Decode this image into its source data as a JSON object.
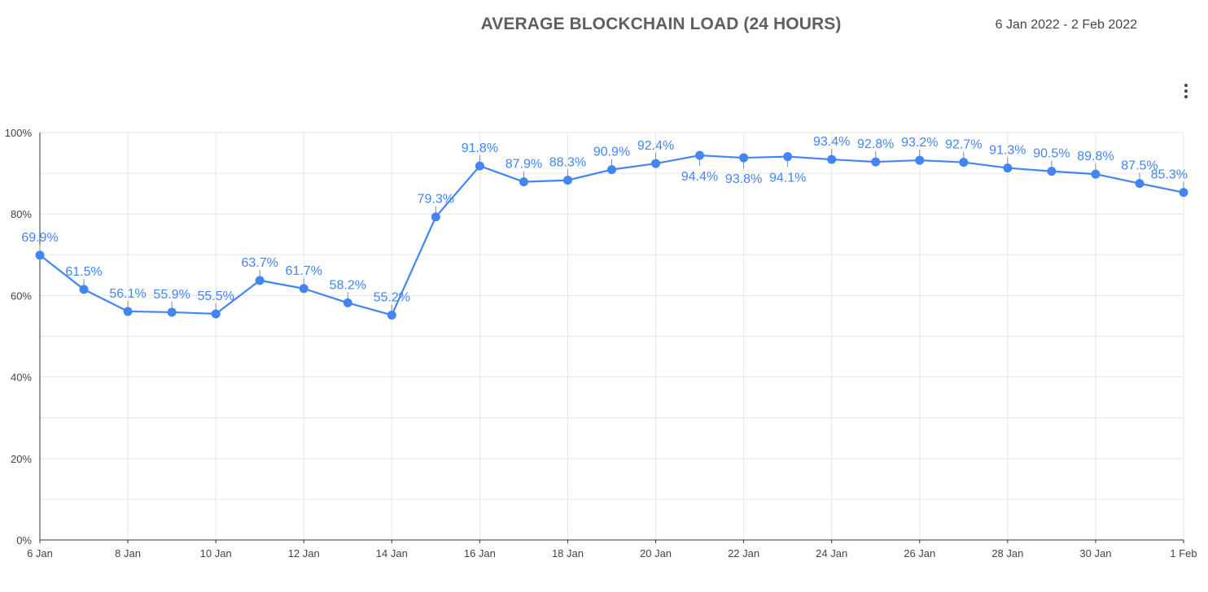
{
  "header": {
    "title": "AVERAGE BLOCKCHAIN LOAD (24 HOURS)",
    "date_range": "6 Jan 2022 - 2 Feb 2022"
  },
  "menu": {
    "icon": "more-vert-icon"
  },
  "colors": {
    "series": "#4285f4",
    "grid": "#e6e6e6",
    "axis": "#333333",
    "text": "#444444"
  },
  "chart_data": {
    "type": "line",
    "title": "AVERAGE BLOCKCHAIN LOAD (24 HOURS)",
    "xlabel": "",
    "ylabel": "",
    "ylim": [
      0,
      100
    ],
    "y_ticks": [
      0,
      20,
      40,
      60,
      80,
      100
    ],
    "y_tick_labels": [
      "0%",
      "20%",
      "40%",
      "60%",
      "80%",
      "100%"
    ],
    "x": [
      "6 Jan",
      "7 Jan",
      "8 Jan",
      "9 Jan",
      "10 Jan",
      "11 Jan",
      "12 Jan",
      "13 Jan",
      "14 Jan",
      "15 Jan",
      "16 Jan",
      "17 Jan",
      "18 Jan",
      "19 Jan",
      "20 Jan",
      "21 Jan",
      "22 Jan",
      "23 Jan",
      "24 Jan",
      "25 Jan",
      "26 Jan",
      "27 Jan",
      "28 Jan",
      "29 Jan",
      "30 Jan",
      "31 Jan",
      "1 Feb"
    ],
    "x_tick_labels": [
      "6 Jan",
      "8 Jan",
      "10 Jan",
      "12 Jan",
      "14 Jan",
      "16 Jan",
      "18 Jan",
      "20 Jan",
      "22 Jan",
      "24 Jan",
      "26 Jan",
      "28 Jan",
      "30 Jan",
      "1 Feb"
    ],
    "series": [
      {
        "name": "Average blockchain load",
        "values": [
          69.9,
          61.5,
          56.1,
          55.9,
          55.5,
          63.7,
          61.7,
          58.2,
          55.2,
          79.3,
          91.8,
          87.9,
          88.3,
          90.9,
          92.4,
          94.4,
          93.8,
          94.1,
          93.4,
          92.8,
          93.2,
          92.7,
          91.3,
          90.5,
          89.8,
          87.5,
          85.3
        ],
        "labels": [
          "69.9%",
          "61.5%",
          "56.1%",
          "55.9%",
          "55.5%",
          "63.7%",
          "61.7%",
          "58.2%",
          "55.2%",
          "79.3%",
          "91.8%",
          "87.9%",
          "88.3%",
          "90.9%",
          "92.4%",
          "94.4%",
          "93.8%",
          "94.1%",
          "93.4%",
          "92.8%",
          "93.2%",
          "92.7%",
          "91.3%",
          "90.5%",
          "89.8%",
          "87.5%",
          "85.3%"
        ],
        "label_position": [
          "above",
          "above",
          "above",
          "above",
          "above",
          "above",
          "above",
          "above",
          "above",
          "above",
          "above",
          "above",
          "above",
          "above",
          "above",
          "below",
          "below",
          "below",
          "above",
          "above",
          "above",
          "above",
          "above",
          "above",
          "above",
          "above",
          "above"
        ]
      }
    ],
    "grid": true,
    "legend": "none"
  }
}
